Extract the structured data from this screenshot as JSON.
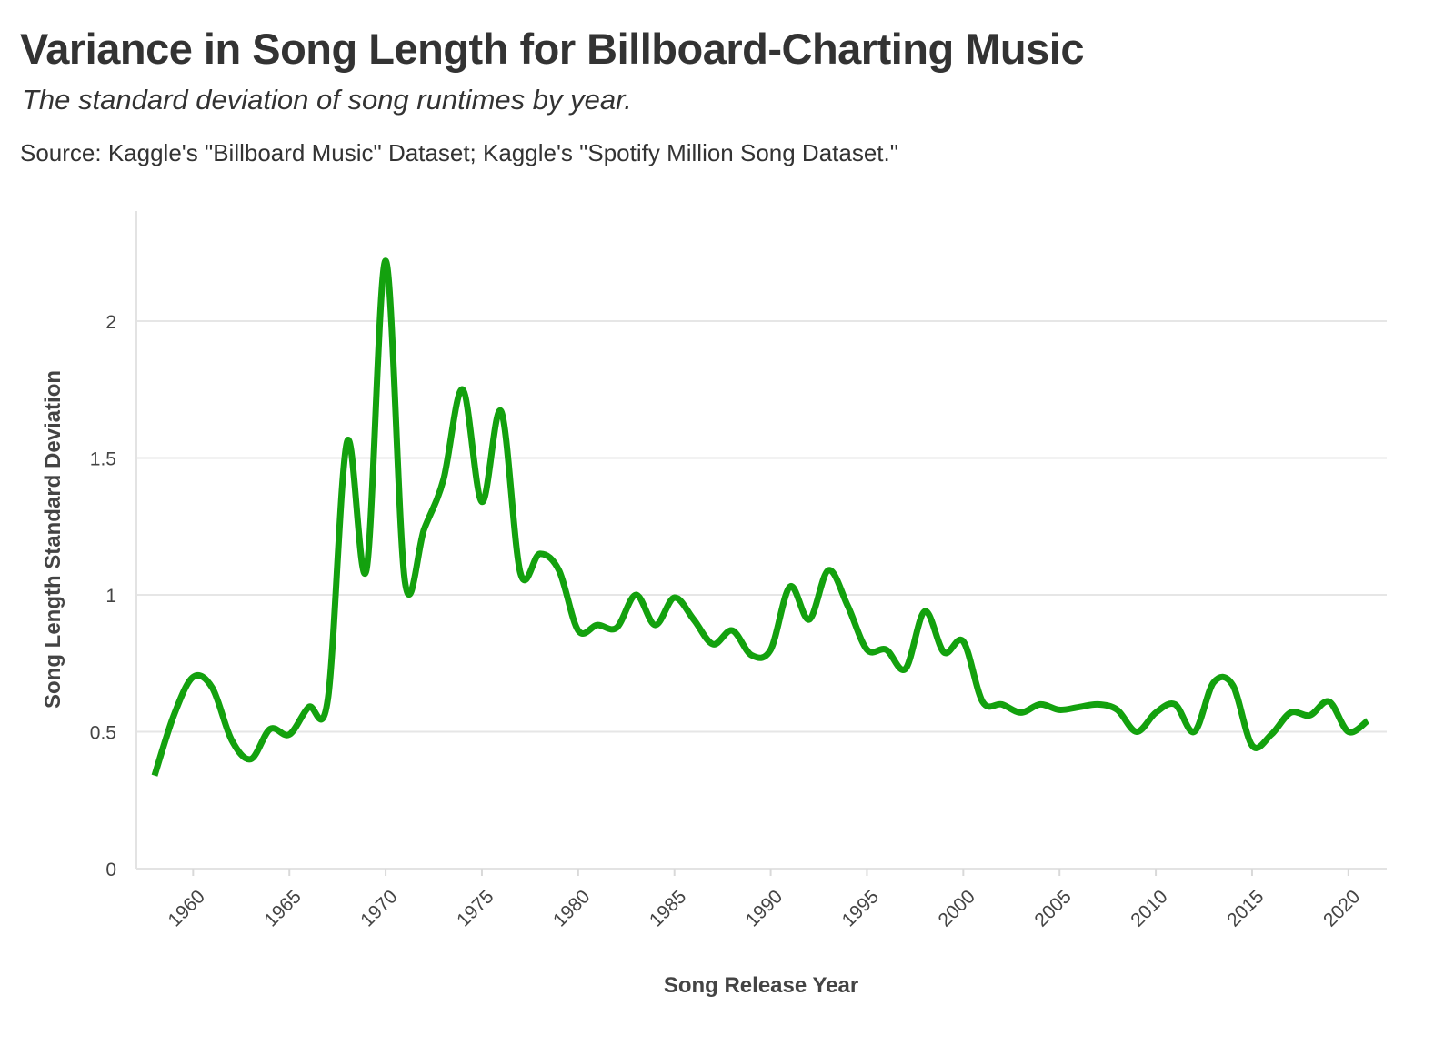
{
  "chart_data": {
    "type": "line",
    "title": "Variance in Song Length for Billboard-Charting Music",
    "subtitle": "The standard deviation of song runtimes by year.",
    "source": "Source: Kaggle's \"Billboard Music\" Dataset; Kaggle's \"Spotify Million Song Dataset.\"",
    "xlabel": "Song Release Year",
    "ylabel": "Song Length Standard Deviation",
    "xlim": [
      1957,
      2022
    ],
    "ylim": [
      0,
      2.3
    ],
    "xticks": [
      1960,
      1965,
      1970,
      1975,
      1980,
      1985,
      1990,
      1995,
      2000,
      2005,
      2010,
      2015,
      2020
    ],
    "xtick_labels": [
      "1960",
      "1965",
      "1970",
      "1975",
      "1980",
      "1985",
      "1990",
      "1995",
      "2000",
      "2005",
      "2010",
      "2015",
      "2020"
    ],
    "yticks": [
      0,
      0.5,
      1,
      1.5,
      2
    ],
    "ytick_labels": [
      "0",
      "0.5",
      "1",
      "1.5",
      "2"
    ],
    "grid": "horizontal",
    "legend": "none",
    "line_color": "#13a10e",
    "x": [
      1958,
      1959,
      1960,
      1961,
      1962,
      1963,
      1964,
      1965,
      1966,
      1967,
      1968,
      1969,
      1970,
      1971,
      1972,
      1973,
      1974,
      1975,
      1976,
      1977,
      1978,
      1979,
      1980,
      1981,
      1982,
      1983,
      1984,
      1985,
      1986,
      1987,
      1988,
      1989,
      1990,
      1991,
      1992,
      1993,
      1994,
      1995,
      1996,
      1997,
      1998,
      1999,
      2000,
      2001,
      2002,
      2003,
      2004,
      2005,
      2006,
      2007,
      2008,
      2009,
      2010,
      2011,
      2012,
      2013,
      2014,
      2015,
      2016,
      2017,
      2018,
      2019,
      2020,
      2021
    ],
    "y": [
      0.34,
      0.56,
      0.7,
      0.66,
      0.47,
      0.4,
      0.51,
      0.49,
      0.59,
      0.62,
      1.56,
      1.09,
      2.22,
      1.05,
      1.24,
      1.42,
      1.75,
      1.34,
      1.67,
      1.08,
      1.15,
      1.09,
      0.87,
      0.89,
      0.88,
      1.0,
      0.89,
      0.99,
      0.91,
      0.82,
      0.87,
      0.78,
      0.8,
      1.03,
      0.91,
      1.09,
      0.96,
      0.8,
      0.8,
      0.73,
      0.94,
      0.79,
      0.83,
      0.61,
      0.6,
      0.57,
      0.6,
      0.58,
      0.59,
      0.6,
      0.58,
      0.5,
      0.57,
      0.6,
      0.5,
      0.68,
      0.67,
      0.45,
      0.49,
      0.57,
      0.56,
      0.61,
      0.5,
      0.54
    ]
  }
}
